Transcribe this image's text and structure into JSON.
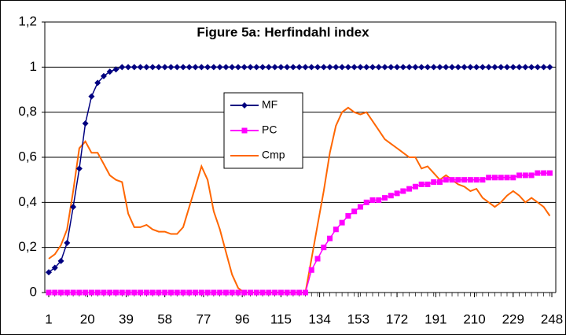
{
  "chart_data": {
    "type": "line",
    "title": "Figure 5a: Herfindahl index",
    "x": [
      1,
      4,
      7,
      10,
      13,
      16,
      19,
      22,
      25,
      28,
      31,
      34,
      37,
      40,
      43,
      46,
      49,
      52,
      55,
      58,
      61,
      64,
      67,
      70,
      73,
      76,
      79,
      82,
      85,
      88,
      91,
      94,
      97,
      100,
      103,
      106,
      109,
      112,
      115,
      118,
      121,
      124,
      127,
      130,
      133,
      136,
      139,
      142,
      145,
      148,
      151,
      154,
      157,
      160,
      163,
      166,
      169,
      172,
      175,
      178,
      181,
      184,
      187,
      190,
      193,
      196,
      199,
      202,
      205,
      208,
      211,
      214,
      217,
      220,
      223,
      226,
      229,
      232,
      235,
      238,
      241,
      244,
      247
    ],
    "series": [
      {
        "name": "MF",
        "color": "#000080",
        "marker": "diamond",
        "values": [
          0.09,
          0.11,
          0.14,
          0.22,
          0.38,
          0.55,
          0.75,
          0.87,
          0.93,
          0.96,
          0.98,
          0.99,
          1,
          1,
          1,
          1,
          1,
          1,
          1,
          1,
          1,
          1,
          1,
          1,
          1,
          1,
          1,
          1,
          1,
          1,
          1,
          1,
          1,
          1,
          1,
          1,
          1,
          1,
          1,
          1,
          1,
          1,
          1,
          1,
          1,
          1,
          1,
          1,
          1,
          1,
          1,
          1,
          1,
          1,
          1,
          1,
          1,
          1,
          1,
          1,
          1,
          1,
          1,
          1,
          1,
          1,
          1,
          1,
          1,
          1,
          1,
          1,
          1,
          1,
          1,
          1,
          1,
          1,
          1,
          1,
          1,
          1,
          1
        ]
      },
      {
        "name": "PC",
        "color": "#ff00ff",
        "marker": "square",
        "values": [
          0,
          0,
          0,
          0,
          0,
          0,
          0,
          0,
          0,
          0,
          0,
          0,
          0,
          0,
          0,
          0,
          0,
          0,
          0,
          0,
          0,
          0,
          0,
          0,
          0,
          0,
          0,
          0,
          0,
          0,
          0,
          0,
          0,
          0,
          0,
          0,
          0,
          0,
          0,
          0,
          0,
          0,
          0,
          0.1,
          0.15,
          0.2,
          0.24,
          0.28,
          0.31,
          0.34,
          0.36,
          0.38,
          0.4,
          0.41,
          0.41,
          0.42,
          0.43,
          0.44,
          0.45,
          0.46,
          0.47,
          0.48,
          0.48,
          0.49,
          0.49,
          0.5,
          0.5,
          0.5,
          0.5,
          0.5,
          0.5,
          0.5,
          0.51,
          0.51,
          0.51,
          0.51,
          0.51,
          0.52,
          0.52,
          0.52,
          0.53,
          0.53,
          0.53
        ]
      },
      {
        "name": "Cmp",
        "color": "#ff6600",
        "marker": "none",
        "values": [
          0.15,
          0.17,
          0.21,
          0.28,
          0.45,
          0.64,
          0.67,
          0.62,
          0.62,
          0.57,
          0.52,
          0.5,
          0.49,
          0.35,
          0.29,
          0.29,
          0.3,
          0.28,
          0.27,
          0.27,
          0.26,
          0.26,
          0.29,
          0.38,
          0.47,
          0.56,
          0.5,
          0.36,
          0.28,
          0.18,
          0.08,
          0.02,
          0,
          0,
          0,
          0,
          0,
          0,
          0,
          0,
          0,
          0,
          0,
          0.15,
          0.3,
          0.45,
          0.62,
          0.74,
          0.8,
          0.82,
          0.8,
          0.79,
          0.8,
          0.76,
          0.72,
          0.68,
          0.66,
          0.64,
          0.62,
          0.6,
          0.6,
          0.55,
          0.56,
          0.53,
          0.5,
          0.52,
          0.5,
          0.48,
          0.47,
          0.45,
          0.46,
          0.42,
          0.4,
          0.38,
          0.4,
          0.43,
          0.45,
          0.43,
          0.4,
          0.42,
          0.4,
          0.38,
          0.34
        ]
      }
    ],
    "xlim": [
      1,
      248
    ],
    "xticks": [
      1,
      20,
      39,
      58,
      77,
      96,
      115,
      134,
      153,
      172,
      191,
      210,
      229,
      248
    ],
    "ylim": [
      0,
      1.2
    ],
    "yticks": [
      0,
      {
        "value": 0.2,
        "label": "0,2"
      },
      {
        "value": 0.4,
        "label": "0,4"
      },
      {
        "value": 0.6,
        "label": "0,6"
      },
      {
        "value": 0.8,
        "label": "0,8"
      },
      1,
      {
        "value": 1.2,
        "label": "1,2"
      }
    ],
    "grid": true,
    "legend_position": "center"
  }
}
